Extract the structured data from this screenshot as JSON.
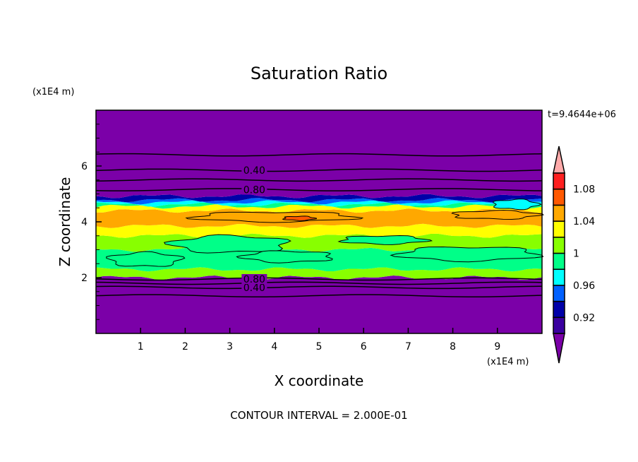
{
  "chart_data": {
    "type": "heatmap",
    "title": "Saturation Ratio",
    "xlabel": "X coordinate",
    "ylabel": "Z coordinate",
    "x_unit_label": "(x1E4 m)",
    "y_unit_label": "(x1E4 m)",
    "time_label": "t=9.4644e+06",
    "footer": "CONTOUR INTERVAL = 2.000E-01",
    "xlim": [
      0,
      10
    ],
    "ylim": [
      0,
      8
    ],
    "xticks": [
      1,
      2,
      3,
      4,
      5,
      6,
      7,
      8,
      9
    ],
    "yticks": [
      2,
      4,
      6
    ],
    "colorbar": {
      "levels": [
        0.9,
        0.92,
        0.94,
        0.96,
        0.98,
        1.0,
        1.02,
        1.04,
        1.06,
        1.08,
        1.1
      ],
      "tick_labels": [
        "0.92",
        "0.96",
        "1",
        "1.04",
        "1.08"
      ],
      "tick_values": [
        0.92,
        0.96,
        1.0,
        1.04,
        1.08
      ],
      "under_color": "#7b00a8",
      "over_color": "#ffaaaa",
      "colors": [
        "#3a00a0",
        "#0000a8",
        "#0060ff",
        "#00ffff",
        "#00ff88",
        "#88ff00",
        "#ffff00",
        "#ffa800",
        "#ff5800",
        "#ff2020"
      ]
    },
    "bands": [
      {
        "z": [
          0.0,
          2.0
        ],
        "value": 0.85
      },
      {
        "z": [
          2.0,
          2.3
        ],
        "value": 1.01
      },
      {
        "z": [
          2.3,
          3.0
        ],
        "value": 0.99
      },
      {
        "z": [
          3.0,
          3.5
        ],
        "value": 1.01
      },
      {
        "z": [
          3.5,
          3.85
        ],
        "value": 1.03
      },
      {
        "z": [
          3.85,
          4.4
        ],
        "value": 1.04
      },
      {
        "z": [
          4.4,
          4.55
        ],
        "value": 1.03
      },
      {
        "z": [
          4.55,
          4.62
        ],
        "value": 0.99
      },
      {
        "z": [
          4.62,
          4.7
        ],
        "value": 0.97
      },
      {
        "z": [
          4.7,
          4.78
        ],
        "value": 0.95
      },
      {
        "z": [
          4.78,
          4.92
        ],
        "value": 0.93
      },
      {
        "z": [
          4.92,
          8.0
        ],
        "value": 0.85
      }
    ],
    "patches": [
      {
        "x": [
          2.2,
          5.8
        ],
        "z": [
          4.0,
          4.35
        ],
        "value": 1.05
      },
      {
        "x": [
          4.2,
          4.9
        ],
        "z": [
          4.05,
          4.2
        ],
        "value": 1.07
      },
      {
        "x": [
          8.0,
          9.9
        ],
        "z": [
          4.1,
          4.4
        ],
        "value": 1.05
      },
      {
        "x": [
          0.3,
          1.9
        ],
        "z": [
          2.4,
          2.9
        ],
        "value": 0.99
      },
      {
        "x": [
          1.7,
          4.3
        ],
        "z": [
          2.9,
          3.5
        ],
        "value": 0.99
      },
      {
        "x": [
          3.3,
          5.3
        ],
        "z": [
          2.55,
          2.95
        ],
        "value": 0.99
      },
      {
        "x": [
          6.8,
          9.9
        ],
        "z": [
          2.6,
          3.1
        ],
        "value": 0.99
      },
      {
        "x": [
          5.5,
          7.4
        ],
        "z": [
          3.2,
          3.5
        ],
        "value": 0.99
      },
      {
        "x": [
          8.9,
          9.9
        ],
        "z": [
          4.45,
          4.8
        ],
        "value": 0.96
      }
    ],
    "contours": [
      {
        "z": 1.35,
        "label": ""
      },
      {
        "z": 1.65,
        "label": "0.40"
      },
      {
        "z": 1.8,
        "label": ""
      },
      {
        "z": 1.95,
        "label": "0.80"
      },
      {
        "z": 5.15,
        "label": "0.80"
      },
      {
        "z": 5.5,
        "label": ""
      },
      {
        "z": 5.85,
        "label": "0.40"
      },
      {
        "z": 6.4,
        "label": ""
      }
    ]
  }
}
